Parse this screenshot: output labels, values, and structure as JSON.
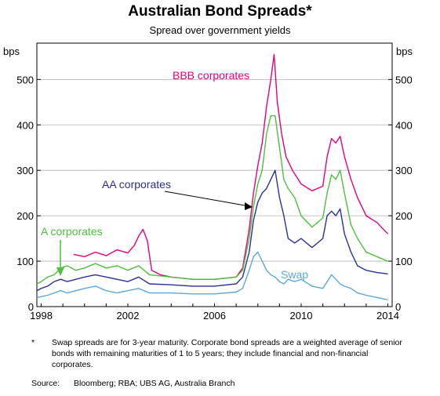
{
  "chart_data": {
    "type": "line",
    "title": "Australian Bond Spreads*",
    "subtitle": "Spread over government yields",
    "ylabel_left": "bps",
    "ylabel_right": "bps",
    "xlim": [
      1997.8,
      2014.2
    ],
    "ylim": [
      0,
      580
    ],
    "x_ticks": [
      "1998",
      "2002",
      "2006",
      "2010",
      "2014"
    ],
    "y_ticks": [
      "0",
      "100",
      "200",
      "300",
      "400",
      "500"
    ],
    "grid": true,
    "series": [
      {
        "name": "BBB corporates",
        "color": "#e6007e",
        "x": [
          1999.5,
          2000.0,
          2000.5,
          2001.0,
          2001.5,
          2002.0,
          2002.3,
          2002.5,
          2002.7,
          2002.9,
          2003.1,
          2003.5,
          2004.0,
          2005.0,
          2006.0,
          2007.0,
          2007.3,
          2007.6,
          2007.8,
          2008.0,
          2008.2,
          2008.4,
          2008.6,
          2008.75,
          2008.9,
          2009.1,
          2009.3,
          2009.6,
          2010.0,
          2010.5,
          2011.0,
          2011.2,
          2011.4,
          2011.6,
          2011.8,
          2012.0,
          2012.3,
          2012.6,
          2013.0,
          2013.5,
          2014.0
        ],
        "values": [
          115,
          110,
          120,
          112,
          125,
          118,
          135,
          155,
          170,
          145,
          80,
          70,
          65,
          60,
          60,
          65,
          85,
          170,
          250,
          310,
          360,
          440,
          500,
          555,
          450,
          380,
          330,
          300,
          270,
          255,
          265,
          330,
          370,
          360,
          375,
          330,
          280,
          240,
          200,
          185,
          160
        ]
      },
      {
        "name": "A corporates",
        "color": "#4dbf3c",
        "x": [
          1997.8,
          1998.0,
          1998.3,
          1998.6,
          1998.9,
          1999.2,
          1999.6,
          2000.0,
          2000.5,
          2001.0,
          2001.5,
          2002.0,
          2002.5,
          2003.0,
          2004.0,
          2005.0,
          2006.0,
          2007.0,
          2007.3,
          2007.6,
          2007.8,
          2008.0,
          2008.2,
          2008.4,
          2008.6,
          2008.8,
          2009.0,
          2009.2,
          2009.4,
          2009.7,
          2010.0,
          2010.5,
          2011.0,
          2011.2,
          2011.4,
          2011.6,
          2011.8,
          2012.0,
          2012.3,
          2012.6,
          2013.0,
          2013.5,
          2014.0
        ],
        "values": [
          50,
          55,
          65,
          70,
          85,
          90,
          80,
          85,
          95,
          85,
          90,
          80,
          90,
          70,
          65,
          60,
          60,
          65,
          80,
          150,
          220,
          270,
          300,
          380,
          420,
          420,
          350,
          280,
          260,
          240,
          200,
          175,
          195,
          250,
          290,
          280,
          300,
          250,
          180,
          150,
          120,
          110,
          100
        ]
      },
      {
        "name": "AA corporates",
        "color": "#2b2f96",
        "x": [
          1997.8,
          1998.0,
          1998.3,
          1998.6,
          1998.9,
          1999.2,
          1999.6,
          2000.0,
          2000.5,
          2001.0,
          2001.5,
          2002.0,
          2002.5,
          2003.0,
          2004.0,
          2005.0,
          2006.0,
          2007.0,
          2007.3,
          2007.6,
          2007.8,
          2008.0,
          2008.2,
          2008.4,
          2008.6,
          2008.8,
          2009.0,
          2009.2,
          2009.4,
          2009.7,
          2010.0,
          2010.5,
          2011.0,
          2011.2,
          2011.4,
          2011.6,
          2011.8,
          2012.0,
          2012.3,
          2012.6,
          2013.0,
          2013.5,
          2014.0
        ],
        "values": [
          35,
          40,
          45,
          55,
          60,
          55,
          60,
          65,
          70,
          65,
          60,
          55,
          65,
          50,
          48,
          45,
          45,
          50,
          65,
          120,
          190,
          230,
          250,
          260,
          280,
          300,
          240,
          200,
          150,
          140,
          150,
          130,
          150,
          200,
          210,
          200,
          215,
          160,
          120,
          90,
          80,
          75,
          72
        ]
      },
      {
        "name": "Swap",
        "color": "#5aa7dc",
        "x": [
          1997.8,
          1998.0,
          1998.3,
          1998.6,
          1998.9,
          1999.2,
          1999.6,
          2000.0,
          2000.5,
          2001.0,
          2001.5,
          2002.0,
          2002.5,
          2003.0,
          2004.0,
          2005.0,
          2006.0,
          2007.0,
          2007.3,
          2007.6,
          2007.8,
          2008.0,
          2008.2,
          2008.4,
          2008.6,
          2008.8,
          2009.0,
          2009.2,
          2009.4,
          2009.7,
          2010.0,
          2010.5,
          2011.0,
          2011.2,
          2011.4,
          2011.6,
          2011.8,
          2012.0,
          2012.3,
          2012.6,
          2013.0,
          2013.5,
          2014.0
        ],
        "values": [
          20,
          22,
          25,
          30,
          35,
          30,
          35,
          40,
          45,
          35,
          30,
          35,
          40,
          30,
          30,
          28,
          28,
          32,
          40,
          80,
          110,
          120,
          100,
          80,
          70,
          65,
          55,
          50,
          60,
          55,
          60,
          45,
          40,
          55,
          70,
          60,
          50,
          45,
          40,
          30,
          25,
          20,
          15
        ]
      }
    ],
    "series_labels": {
      "bbb": "BBB corporates",
      "aa": "AA corporates",
      "a": "A corporates",
      "swap": "Swap"
    }
  },
  "footnote": {
    "marker": "*",
    "text": "Swap spreads are for 3-year maturity. Corporate bond spreads are a weighted average of senior bonds with remaining maturities of 1 to 5 years; they include financial and non-financial corporates."
  },
  "source": {
    "label": "Source:",
    "text": "Bloomberg; RBA; UBS AG, Australia Branch"
  }
}
